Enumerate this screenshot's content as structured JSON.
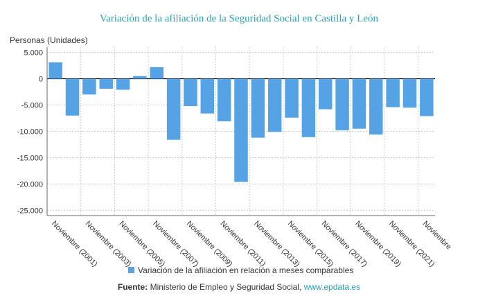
{
  "chart_data": {
    "type": "bar",
    "title": "Variación de la afiliación de la Seguridad Social en Castilla y León",
    "y_label": "Personas (Unidades)",
    "categories": [
      "Noviembre (2001)",
      null,
      "Noviembre (2003)",
      null,
      "Noviembre (2005)",
      null,
      "Noviembre (2007)",
      null,
      "Noviembre (2009)",
      null,
      "Noviembre (2011)",
      null,
      "Noviembre (2013)",
      null,
      "Noviembre (2015)",
      null,
      "Noviembre (2017)",
      null,
      "Noviembre (2019)",
      null,
      "Noviembre (2021)",
      null,
      "Noviembre"
    ],
    "series": [
      {
        "name": "Variación de la afiliación en relación a meses comparables",
        "color": "#55a3e5",
        "values": [
          3100,
          -7000,
          -3000,
          -1900,
          -2100,
          500,
          2200,
          -11600,
          -5200,
          -6600,
          -8100,
          -19600,
          -11200,
          -10100,
          -7400,
          -11100,
          -5800,
          -9800,
          -9500,
          -10600,
          -5400,
          -5500,
          -7100
        ]
      }
    ],
    "ylim": [
      -26000,
      6000
    ],
    "yticks": [
      {
        "value": 5000,
        "label": "5.000"
      },
      0,
      {
        "value": -5000,
        "label": "-5.000"
      },
      {
        "value": -10000,
        "label": "-10.000"
      },
      {
        "value": -15000,
        "label": "-15.000"
      },
      {
        "value": -20000,
        "label": "-20.000"
      },
      {
        "value": -25000,
        "label": "-25.000"
      }
    ],
    "grid": true,
    "source": {
      "label": "Fuente:",
      "text": "Ministerio de Empleo y Seguridad Social,",
      "link": "www.epdata.es"
    }
  }
}
